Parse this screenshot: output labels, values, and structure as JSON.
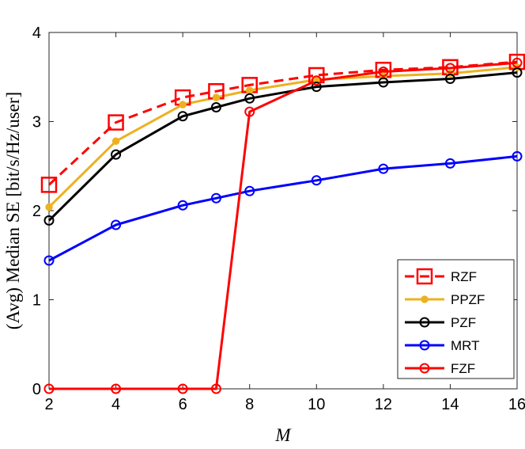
{
  "chart_data": {
    "type": "line",
    "xlabel": "M",
    "ylabel": "(Avg) Median SE [bit/s/Hz/user]",
    "xlim": [
      2,
      16
    ],
    "ylim": [
      0,
      4
    ],
    "xticks": [
      2,
      4,
      6,
      8,
      10,
      12,
      14,
      16
    ],
    "yticks": [
      0,
      1,
      2,
      3,
      4
    ],
    "grid": false,
    "legend_position": "bottom-right",
    "series": [
      {
        "name": "RZF",
        "color": "#ff0000",
        "line_style": "dashed",
        "marker": "square",
        "x": [
          2,
          4,
          6,
          7,
          8,
          10,
          12,
          14,
          16
        ],
        "y": [
          2.29,
          2.99,
          3.27,
          3.34,
          3.41,
          3.52,
          3.58,
          3.61,
          3.67
        ]
      },
      {
        "name": "PPZF",
        "color": "#edb120",
        "line_style": "solid",
        "marker": "dot",
        "x": [
          2,
          4,
          6,
          7,
          8,
          10,
          12,
          14,
          16
        ],
        "y": [
          2.04,
          2.78,
          3.19,
          3.27,
          3.35,
          3.47,
          3.51,
          3.54,
          3.61
        ]
      },
      {
        "name": "PZF",
        "color": "#000000",
        "line_style": "solid",
        "marker": "circle",
        "x": [
          2,
          4,
          6,
          7,
          8,
          10,
          12,
          14,
          16
        ],
        "y": [
          1.89,
          2.63,
          3.06,
          3.16,
          3.26,
          3.39,
          3.44,
          3.48,
          3.55
        ]
      },
      {
        "name": "MRT",
        "color": "#0000ff",
        "line_style": "solid",
        "marker": "circle",
        "x": [
          2,
          4,
          6,
          7,
          8,
          10,
          12,
          14,
          16
        ],
        "y": [
          1.44,
          1.84,
          2.06,
          2.14,
          2.22,
          2.34,
          2.47,
          2.53,
          2.61
        ]
      },
      {
        "name": "FZF",
        "color": "#ff0000",
        "line_style": "solid",
        "marker": "circle",
        "x": [
          2,
          4,
          6,
          7,
          8,
          10,
          12,
          14,
          16
        ],
        "y": [
          0,
          0,
          0,
          0,
          3.11,
          3.46,
          3.56,
          3.6,
          3.66
        ]
      }
    ]
  }
}
